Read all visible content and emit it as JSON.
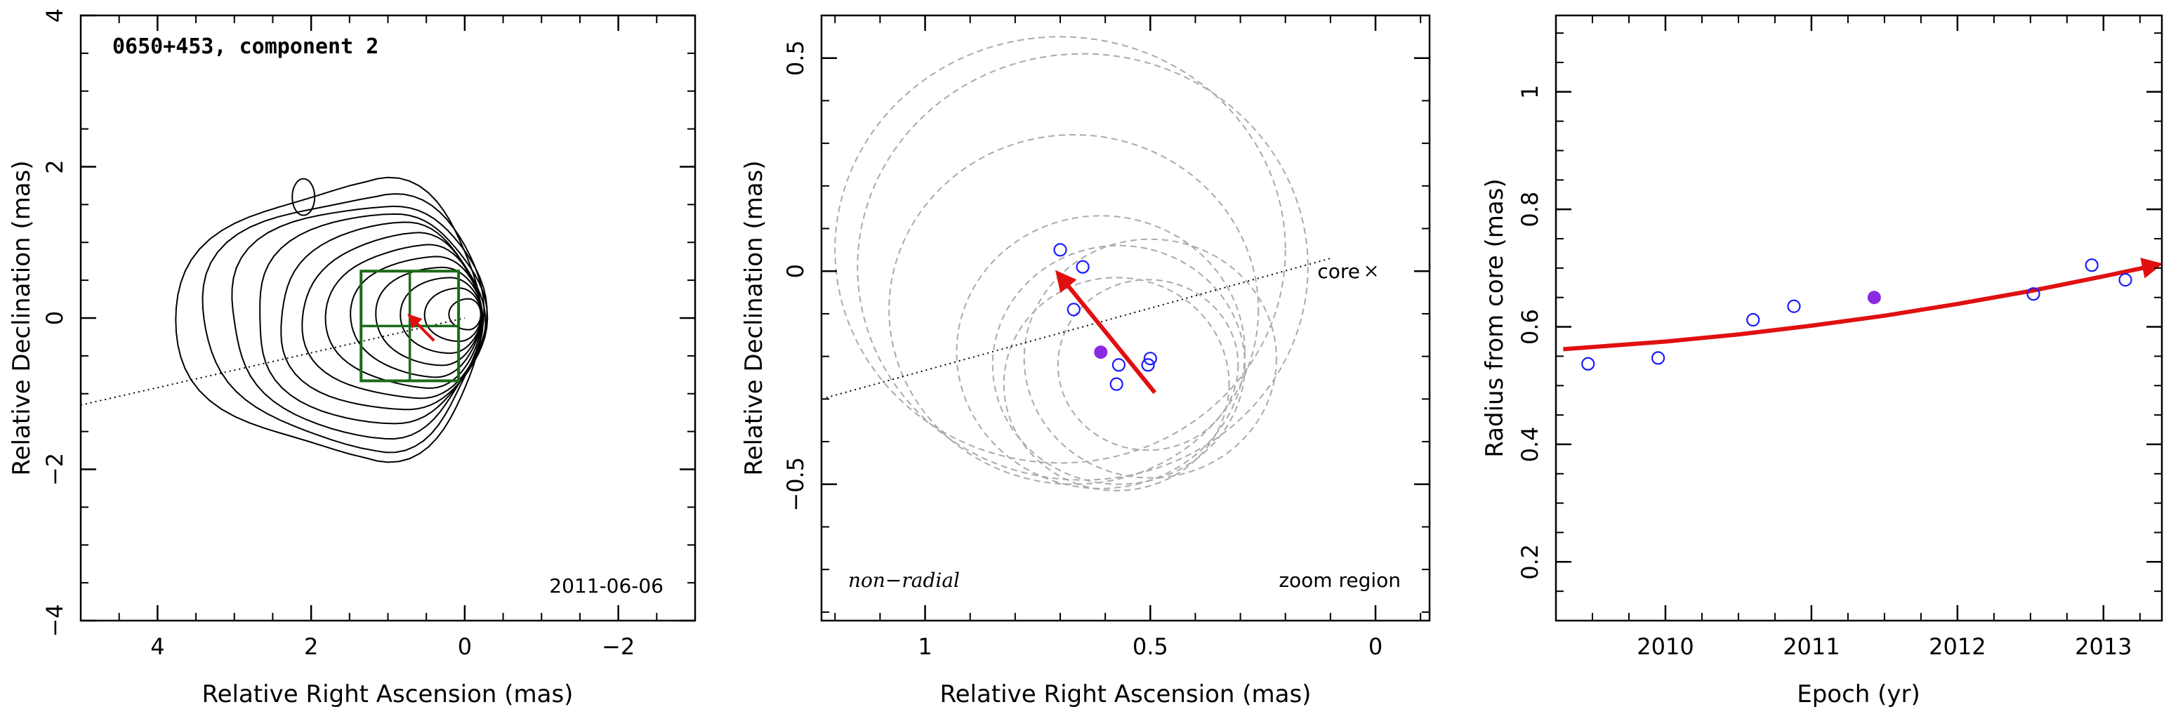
{
  "chart_data": [
    {
      "type": "contour",
      "annotation_title": "0650+453, component 2",
      "annotation_date": "2011-06-06",
      "xlabel": "Relative Right Ascension (mas)",
      "ylabel": "Relative Declination (mas)",
      "xlim": [
        5,
        -3
      ],
      "ylim": [
        -4,
        4
      ],
      "xticks": [
        4,
        2,
        0,
        -2
      ],
      "yticks": [
        -4,
        -2,
        0,
        2,
        4
      ],
      "xtick_labels": [
        "4",
        "2",
        "0",
        "−2"
      ],
      "ytick_labels": [
        "−4",
        "−2",
        "0",
        "2",
        "4"
      ],
      "jet_axis_line": {
        "from": [
          5,
          -1.15
        ],
        "to": [
          0,
          0
        ]
      },
      "zoom_box": {
        "ra": [
          1.35,
          0.08
        ],
        "dec": [
          -0.83,
          0.62
        ]
      },
      "colors": {
        "contour": "#000000",
        "box": "#1a6b1a",
        "arrow": "#e01010"
      }
    },
    {
      "type": "scatter",
      "annotation_left": "non−radial",
      "annotation_right": "zoom region",
      "core_label": "core",
      "xlabel": "Relative Right Ascension (mas)",
      "ylabel": "Relative Declination (mas)",
      "xlim": [
        1.23,
        -0.12
      ],
      "ylim": [
        -0.82,
        0.6
      ],
      "xticks": [
        1,
        0.5,
        0
      ],
      "yticks": [
        -0.5,
        0,
        0.5
      ],
      "xtick_labels": [
        "1",
        "0.5",
        "0"
      ],
      "ytick_labels": [
        "−0.5",
        "0",
        "0.5"
      ],
      "core": {
        "x": 0,
        "y": 0
      },
      "points": [
        {
          "x": 0.7,
          "y": 0.05
        },
        {
          "x": 0.65,
          "y": 0.01
        },
        {
          "x": 0.67,
          "y": -0.09
        },
        {
          "x": 0.57,
          "y": -0.22
        },
        {
          "x": 0.575,
          "y": -0.265
        },
        {
          "x": 0.5,
          "y": -0.205
        },
        {
          "x": 0.505,
          "y": -0.22
        }
      ],
      "highlighted_point": {
        "x": 0.61,
        "y": -0.19
      },
      "arrow": {
        "from": [
          0.49,
          -0.285
        ],
        "to": [
          0.705,
          -0.005
        ]
      },
      "jet_axis_line": {
        "from": [
          1.23,
          -0.3
        ],
        "to": [
          0.1,
          0.03
        ]
      },
      "circles": [
        {
          "x": 0.7,
          "y": 0.05,
          "r": 0.5
        },
        {
          "x": 0.65,
          "y": 0.01,
          "r": 0.5
        },
        {
          "x": 0.67,
          "y": -0.09,
          "r": 0.41
        },
        {
          "x": 0.61,
          "y": -0.19,
          "r": 0.32
        },
        {
          "x": 0.57,
          "y": -0.22,
          "r": 0.28
        },
        {
          "x": 0.575,
          "y": -0.265,
          "r": 0.25
        },
        {
          "x": 0.5,
          "y": -0.205,
          "r": 0.28
        },
        {
          "x": 0.505,
          "y": -0.22,
          "r": 0.2
        }
      ],
      "colors": {
        "points": "#1a1aff",
        "highlight": "#8a2be2",
        "arrow": "#e01010",
        "circles": "#aaaaaa"
      }
    },
    {
      "type": "scatter",
      "xlabel": "Epoch (yr)",
      "ylabel": "Radius from core (mas)",
      "xlim": [
        2009.25,
        2013.4
      ],
      "ylim": [
        0.1,
        1.13
      ],
      "xticks": [
        2010,
        2011,
        2012,
        2013
      ],
      "yticks": [
        0.2,
        0.4,
        0.6,
        0.8,
        1
      ],
      "xtick_labels": [
        "2010",
        "2011",
        "2012",
        "2013"
      ],
      "ytick_labels": [
        "0.2",
        "0.4",
        "0.6",
        "0.8",
        "1"
      ],
      "points": [
        {
          "x": 2009.47,
          "y": 0.537
        },
        {
          "x": 2009.95,
          "y": 0.547
        },
        {
          "x": 2010.6,
          "y": 0.612
        },
        {
          "x": 2010.88,
          "y": 0.635
        },
        {
          "x": 2012.52,
          "y": 0.656
        },
        {
          "x": 2012.92,
          "y": 0.705
        },
        {
          "x": 2013.15,
          "y": 0.68
        }
      ],
      "highlighted_point": {
        "x": 2011.43,
        "y": 0.65
      },
      "fit_curve": [
        [
          2009.3,
          0.562
        ],
        [
          2010,
          0.575
        ],
        [
          2010.5,
          0.587
        ],
        [
          2011,
          0.602
        ],
        [
          2011.5,
          0.619
        ],
        [
          2012,
          0.639
        ],
        [
          2012.5,
          0.661
        ],
        [
          2013,
          0.686
        ],
        [
          2013.38,
          0.706
        ]
      ],
      "colors": {
        "points": "#1a1aff",
        "highlight": "#8a2be2",
        "fit": "#e01010"
      }
    }
  ]
}
